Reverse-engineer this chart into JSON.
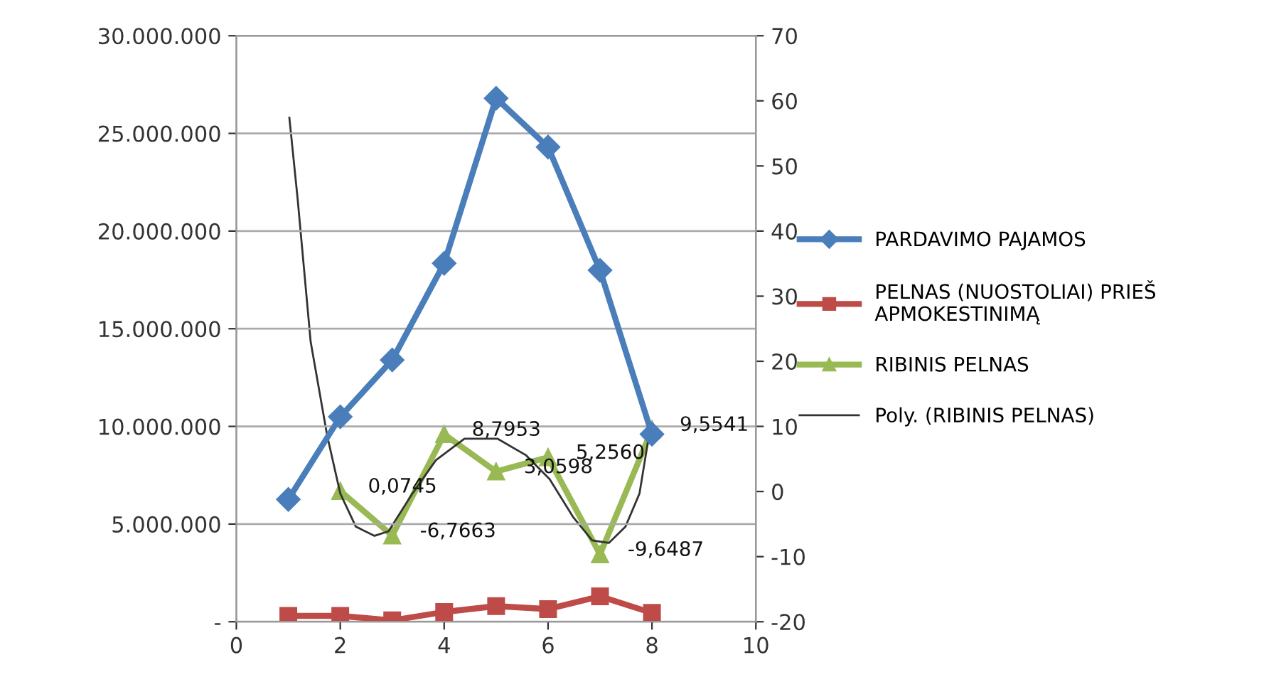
{
  "chart_data": {
    "type": "line",
    "xlim": [
      0,
      10
    ],
    "xticks": [
      0,
      2,
      4,
      6,
      8,
      10
    ],
    "ylim": [
      0,
      30000000
    ],
    "yticks": [
      {
        "value": 0,
        "label": "-"
      },
      {
        "value": 5000000,
        "label": "5.000.000"
      },
      {
        "value": 10000000,
        "label": "10.000.000"
      },
      {
        "value": 15000000,
        "label": "15.000.000"
      },
      {
        "value": 20000000,
        "label": "20.000.000"
      },
      {
        "value": 25000000,
        "label": "25.000.000"
      },
      {
        "value": 30000000,
        "label": "30.000.000"
      }
    ],
    "y2lim": [
      -20,
      70
    ],
    "y2ticks": [
      -20,
      -10,
      0,
      10,
      20,
      30,
      40,
      50,
      60,
      70
    ],
    "grid": "y",
    "legend": "right",
    "series": [
      {
        "name": "PARDAVIMO PAJAMOS",
        "color": "#4a7ebb",
        "marker": "diamond",
        "x": [
          1,
          2,
          3,
          4,
          5,
          6,
          7,
          8
        ],
        "values": [
          6260000,
          10490000,
          13400000,
          18350000,
          26800000,
          24300000,
          17990000,
          9600000
        ]
      },
      {
        "name": "PELNAS (NUOSTOLIAI) PRIEŠ APMOKESTINIMĄ",
        "color": "#be4b48",
        "marker": "square",
        "x": [
          1,
          2,
          3,
          4,
          5,
          6,
          7,
          8
        ],
        "values": [
          300000,
          300000,
          70000,
          500000,
          800000,
          650000,
          1300000,
          450000
        ]
      },
      {
        "name": "RIBINIS PELNAS",
        "color": "#98b954",
        "marker": "triangle",
        "axis": "y2",
        "x": [
          2,
          3,
          4,
          5,
          6,
          7,
          8
        ],
        "values": [
          0.0745,
          -6.7663,
          8.7953,
          3.0598,
          5.256,
          -9.6487,
          9.5541
        ],
        "value_labels": [
          "0,0745",
          "-6,7663",
          "8,7953",
          "3,0598",
          "5,2560",
          "-9,6487",
          "9,5541"
        ]
      },
      {
        "name": "Poly. (RIBINIS PELNAS)",
        "color": "#333333",
        "marker": "none",
        "axis": "y2",
        "x": [
          1.02,
          1.18,
          1.43,
          1.75,
          2.0,
          2.3,
          2.66,
          2.93,
          3.39,
          3.84,
          4.39,
          5.03,
          5.57,
          6.03,
          6.48,
          6.85,
          7.17,
          7.49,
          7.76,
          7.94
        ],
        "values": [
          57.4,
          44.9,
          23.0,
          8.5,
          -0.3,
          -5.4,
          -6.8,
          -6.1,
          -0.3,
          4.8,
          8.1,
          8.1,
          5.6,
          1.9,
          -3.9,
          -7.5,
          -7.9,
          -5.4,
          -0.3,
          8.5
        ]
      }
    ]
  }
}
